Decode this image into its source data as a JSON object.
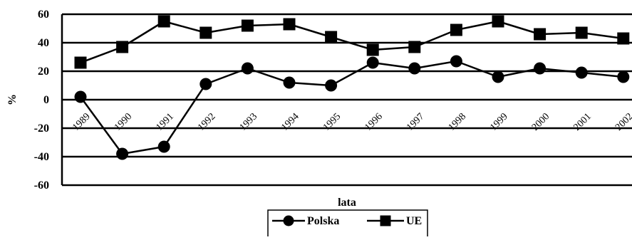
{
  "chart_data": {
    "type": "line",
    "categories": [
      "1989",
      "1990",
      "1991",
      "1992",
      "1993",
      "1994",
      "1995",
      "1996",
      "1997",
      "1998",
      "1999",
      "2000",
      "2001",
      "2002"
    ],
    "series": [
      {
        "name": "Polska",
        "marker": "circle",
        "values": [
          2,
          -38,
          -33,
          11,
          22,
          12,
          10,
          26,
          22,
          27,
          16,
          22,
          19,
          16
        ]
      },
      {
        "name": "UE",
        "marker": "square",
        "values": [
          26,
          37,
          55,
          47,
          52,
          53,
          44,
          35,
          37,
          49,
          55,
          46,
          47,
          43
        ]
      }
    ],
    "xlabel": "lata",
    "ylabel": "%",
    "ylim": [
      -60,
      60
    ],
    "yticks": [
      60,
      40,
      20,
      0,
      -20,
      -40,
      -60
    ],
    "grid": "horizontal",
    "legend": "bottom",
    "colors": {
      "line": "#000000",
      "grid": "#000000",
      "background": "#ffffff"
    }
  }
}
